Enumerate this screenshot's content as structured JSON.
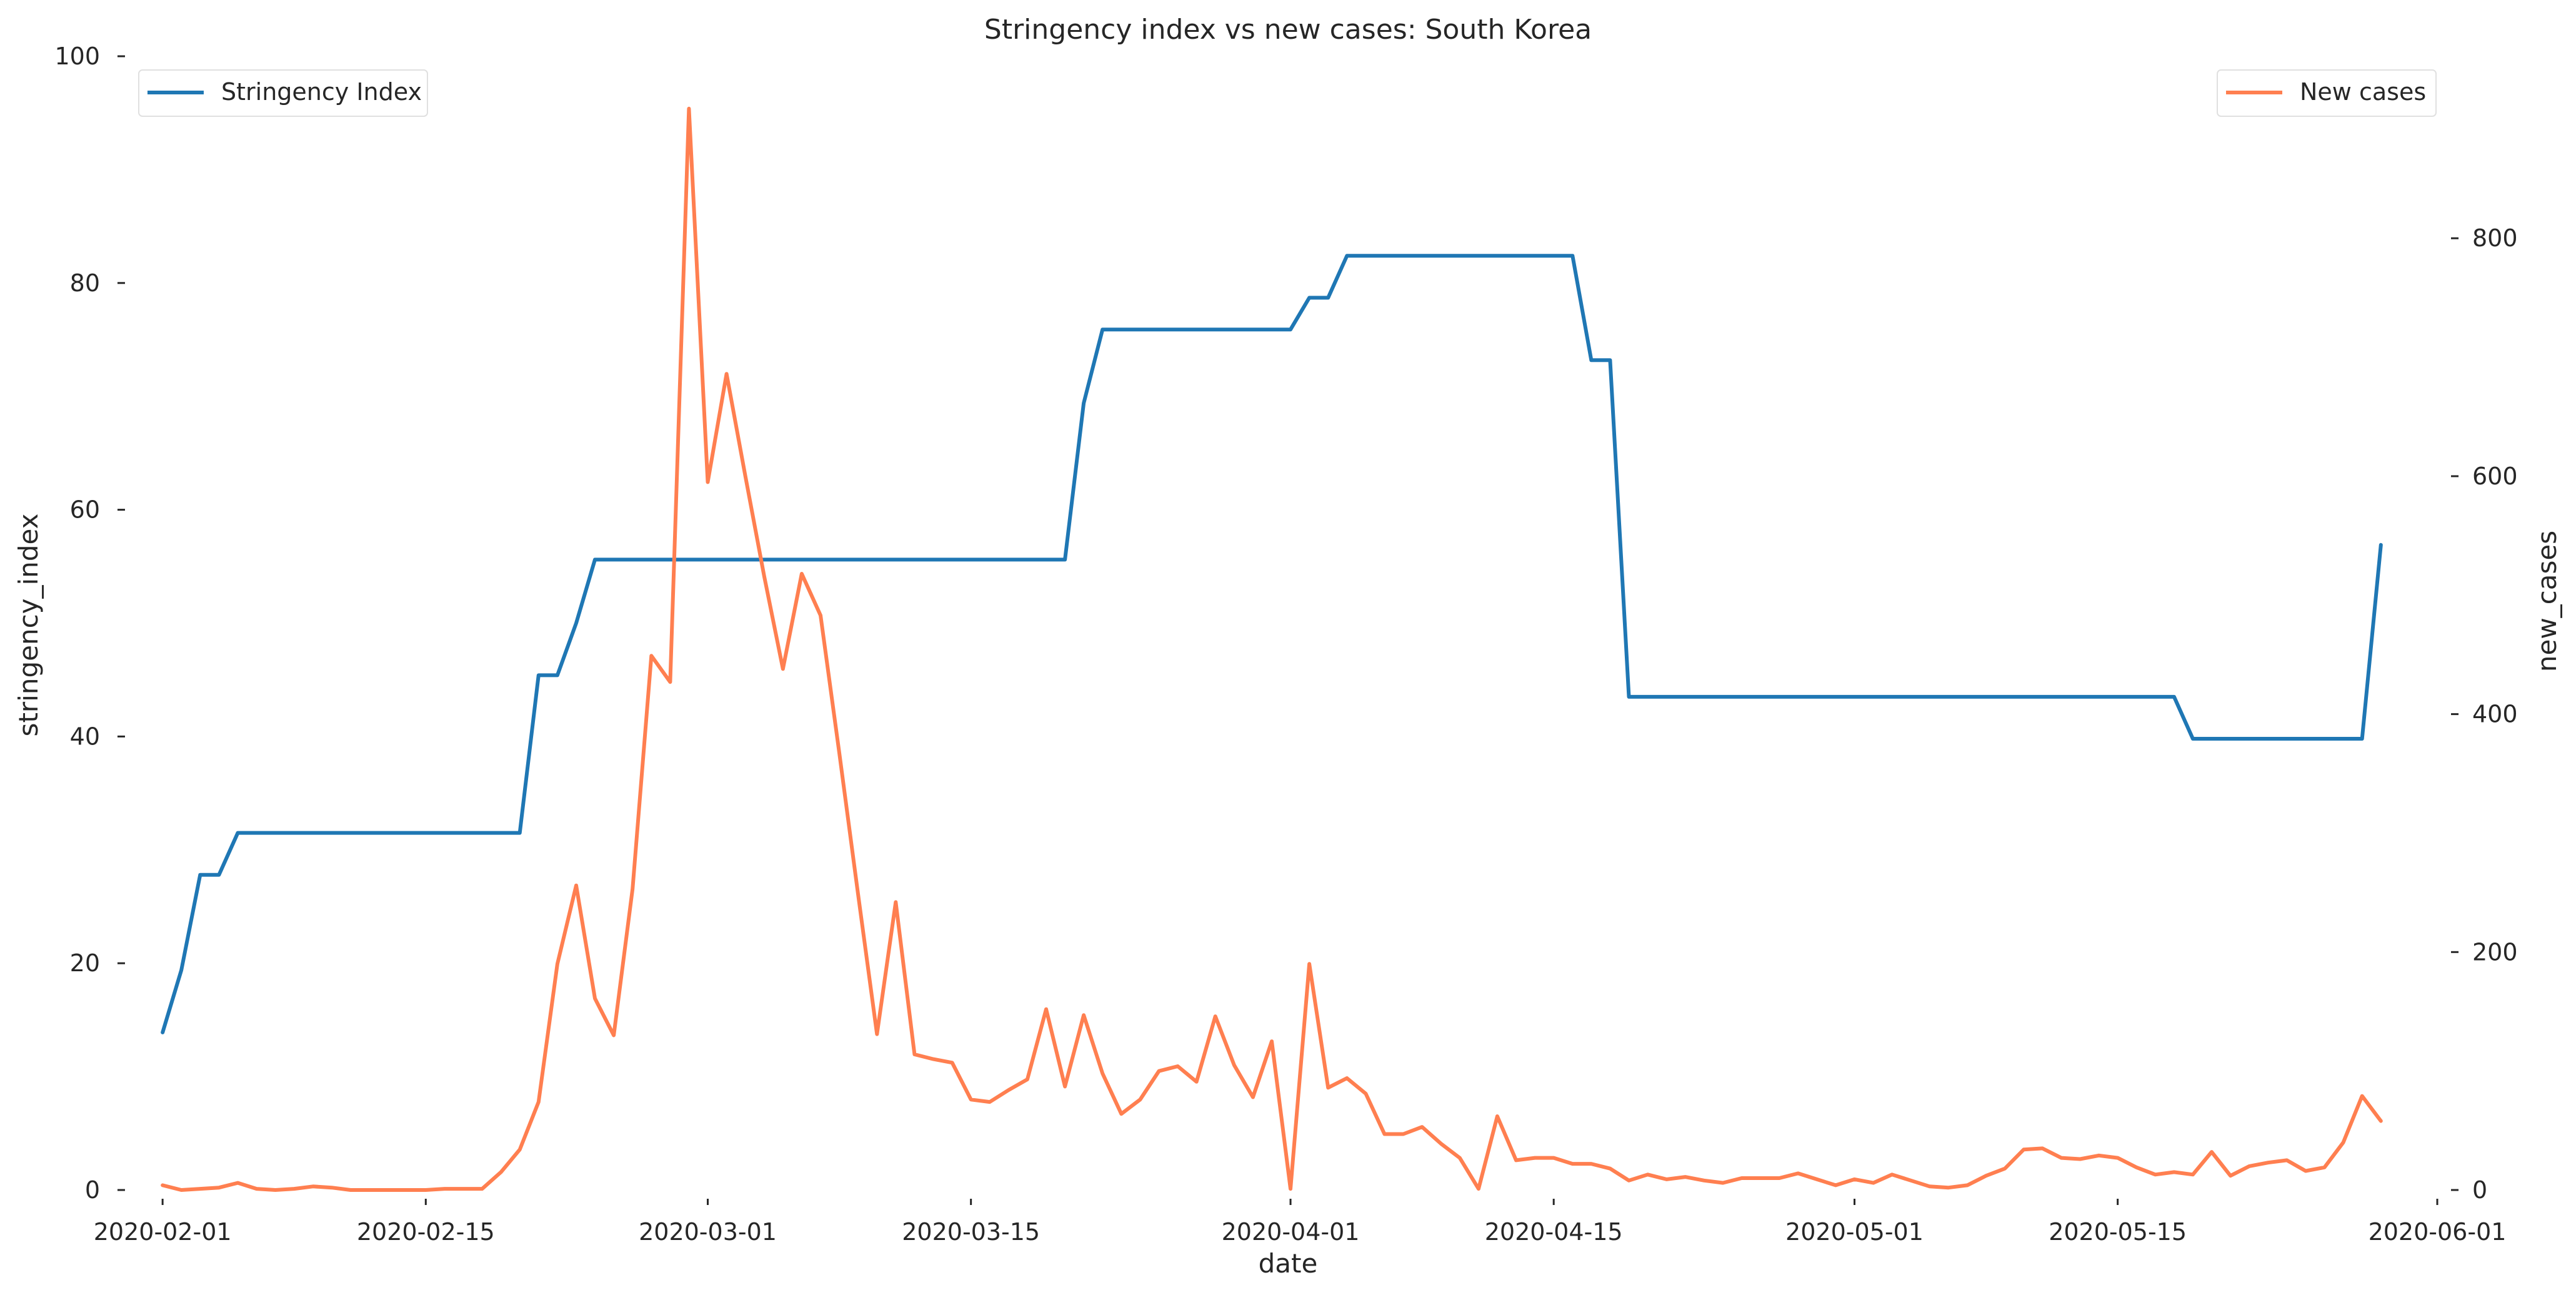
{
  "chart_data": {
    "type": "line",
    "title": "Stringency index vs new cases:  South Korea",
    "xlabel": "date",
    "ylabel_left": "stringency_index",
    "ylabel_right": "new_cases",
    "ylim_left": [
      0,
      100
    ],
    "ylim_right": [
      0,
      953
    ],
    "xlim": [
      "2020-01-30",
      "2020-06-01"
    ],
    "x_ticks": [
      "2020-02-01",
      "2020-02-15",
      "2020-03-01",
      "2020-03-15",
      "2020-04-01",
      "2020-04-15",
      "2020-05-01",
      "2020-05-15",
      "2020-06-01"
    ],
    "y_ticks_left": [
      "0",
      "20",
      "40",
      "60",
      "80",
      "100"
    ],
    "y_ticks_right": [
      "0",
      "200",
      "400",
      "600",
      "800"
    ],
    "grid": false,
    "colors": {
      "stringency": "#1f77b4",
      "cases": "#ff7f50"
    },
    "series": [
      {
        "name": "Stringency Index",
        "axis": "left",
        "legend_position": "top-left",
        "points": [
          [
            "2020-02-01",
            13.9
          ],
          [
            "2020-02-02",
            19.4
          ],
          [
            "2020-02-03",
            27.8
          ],
          [
            "2020-02-04",
            27.8
          ],
          [
            "2020-02-05",
            31.5
          ],
          [
            "2020-02-20",
            31.5
          ],
          [
            "2020-02-21",
            45.4
          ],
          [
            "2020-02-22",
            45.4
          ],
          [
            "2020-02-23",
            50.0
          ],
          [
            "2020-02-24",
            55.6
          ],
          [
            "2020-03-20",
            55.6
          ],
          [
            "2020-03-21",
            69.4
          ],
          [
            "2020-03-22",
            75.9
          ],
          [
            "2020-04-01",
            75.9
          ],
          [
            "2020-04-02",
            78.7
          ],
          [
            "2020-04-03",
            78.7
          ],
          [
            "2020-04-04",
            82.4
          ],
          [
            "2020-04-16",
            82.4
          ],
          [
            "2020-04-17",
            73.2
          ],
          [
            "2020-04-18",
            73.2
          ],
          [
            "2020-04-19",
            43.5
          ],
          [
            "2020-05-18",
            43.5
          ],
          [
            "2020-05-19",
            39.8
          ],
          [
            "2020-05-28",
            39.8
          ],
          [
            "2020-05-29",
            56.9
          ]
        ]
      },
      {
        "name": "New cases",
        "axis": "right",
        "legend_position": "top-right",
        "points": [
          [
            "2020-02-01",
            4
          ],
          [
            "2020-02-02",
            0
          ],
          [
            "2020-02-03",
            1
          ],
          [
            "2020-02-04",
            2
          ],
          [
            "2020-02-05",
            6
          ],
          [
            "2020-02-06",
            1
          ],
          [
            "2020-02-07",
            0
          ],
          [
            "2020-02-08",
            1
          ],
          [
            "2020-02-09",
            3
          ],
          [
            "2020-02-10",
            2
          ],
          [
            "2020-02-11",
            0
          ],
          [
            "2020-02-12",
            0
          ],
          [
            "2020-02-13",
            0
          ],
          [
            "2020-02-14",
            0
          ],
          [
            "2020-02-15",
            0
          ],
          [
            "2020-02-16",
            1
          ],
          [
            "2020-02-17",
            1
          ],
          [
            "2020-02-18",
            1
          ],
          [
            "2020-02-19",
            15
          ],
          [
            "2020-02-20",
            34
          ],
          [
            "2020-02-21",
            74
          ],
          [
            "2020-02-22",
            190
          ],
          [
            "2020-02-23",
            256
          ],
          [
            "2020-02-24",
            161
          ],
          [
            "2020-02-25",
            130
          ],
          [
            "2020-02-26",
            253
          ],
          [
            "2020-02-27",
            449
          ],
          [
            "2020-02-28",
            427
          ],
          [
            "2020-02-29",
            909
          ],
          [
            "2020-03-01",
            595
          ],
          [
            "2020-03-02",
            686
          ],
          [
            "2020-03-03",
            600
          ],
          [
            "2020-03-04",
            516
          ],
          [
            "2020-03-05",
            438
          ],
          [
            "2020-03-06",
            518
          ],
          [
            "2020-03-07",
            483
          ],
          [
            "2020-03-08",
            367
          ],
          [
            "2020-03-09",
            248
          ],
          [
            "2020-03-10",
            131
          ],
          [
            "2020-03-11",
            242
          ],
          [
            "2020-03-12",
            114
          ],
          [
            "2020-03-13",
            110
          ],
          [
            "2020-03-14",
            107
          ],
          [
            "2020-03-15",
            76
          ],
          [
            "2020-03-16",
            74
          ],
          [
            "2020-03-17",
            84
          ],
          [
            "2020-03-18",
            93
          ],
          [
            "2020-03-19",
            152
          ],
          [
            "2020-03-20",
            87
          ],
          [
            "2020-03-21",
            147
          ],
          [
            "2020-03-22",
            98
          ],
          [
            "2020-03-23",
            64
          ],
          [
            "2020-03-24",
            76
          ],
          [
            "2020-03-25",
            100
          ],
          [
            "2020-03-26",
            104
          ],
          [
            "2020-03-27",
            91
          ],
          [
            "2020-03-28",
            146
          ],
          [
            "2020-03-29",
            105
          ],
          [
            "2020-03-30",
            78
          ],
          [
            "2020-03-31",
            125
          ],
          [
            "2020-04-01",
            1
          ],
          [
            "2020-04-02",
            190
          ],
          [
            "2020-04-03",
            86
          ],
          [
            "2020-04-04",
            94
          ],
          [
            "2020-04-05",
            81
          ],
          [
            "2020-04-06",
            47
          ],
          [
            "2020-04-07",
            47
          ],
          [
            "2020-04-08",
            53
          ],
          [
            "2020-04-09",
            39
          ],
          [
            "2020-04-10",
            27
          ],
          [
            "2020-04-11",
            1
          ],
          [
            "2020-04-12",
            62
          ],
          [
            "2020-04-13",
            25
          ],
          [
            "2020-04-14",
            27
          ],
          [
            "2020-04-15",
            27
          ],
          [
            "2020-04-16",
            22
          ],
          [
            "2020-04-17",
            22
          ],
          [
            "2020-04-18",
            18
          ],
          [
            "2020-04-19",
            8
          ],
          [
            "2020-04-20",
            13
          ],
          [
            "2020-04-21",
            9
          ],
          [
            "2020-04-22",
            11
          ],
          [
            "2020-04-23",
            8
          ],
          [
            "2020-04-24",
            6
          ],
          [
            "2020-04-25",
            10
          ],
          [
            "2020-04-26",
            10
          ],
          [
            "2020-04-27",
            10
          ],
          [
            "2020-04-28",
            14
          ],
          [
            "2020-04-29",
            9
          ],
          [
            "2020-04-30",
            4
          ],
          [
            "2020-05-01",
            9
          ],
          [
            "2020-05-02",
            6
          ],
          [
            "2020-05-03",
            13
          ],
          [
            "2020-05-04",
            8
          ],
          [
            "2020-05-05",
            3
          ],
          [
            "2020-05-06",
            2
          ],
          [
            "2020-05-07",
            4
          ],
          [
            "2020-05-08",
            12
          ],
          [
            "2020-05-09",
            18
          ],
          [
            "2020-05-10",
            34
          ],
          [
            "2020-05-11",
            35
          ],
          [
            "2020-05-12",
            27
          ],
          [
            "2020-05-13",
            26
          ],
          [
            "2020-05-14",
            29
          ],
          [
            "2020-05-15",
            27
          ],
          [
            "2020-05-16",
            19
          ],
          [
            "2020-05-17",
            13
          ],
          [
            "2020-05-18",
            15
          ],
          [
            "2020-05-19",
            13
          ],
          [
            "2020-05-20",
            32
          ],
          [
            "2020-05-21",
            12
          ],
          [
            "2020-05-22",
            20
          ],
          [
            "2020-05-23",
            23
          ],
          [
            "2020-05-24",
            25
          ],
          [
            "2020-05-25",
            16
          ],
          [
            "2020-05-26",
            19
          ],
          [
            "2020-05-27",
            40
          ],
          [
            "2020-05-28",
            79
          ],
          [
            "2020-05-29",
            58
          ]
        ]
      }
    ]
  }
}
